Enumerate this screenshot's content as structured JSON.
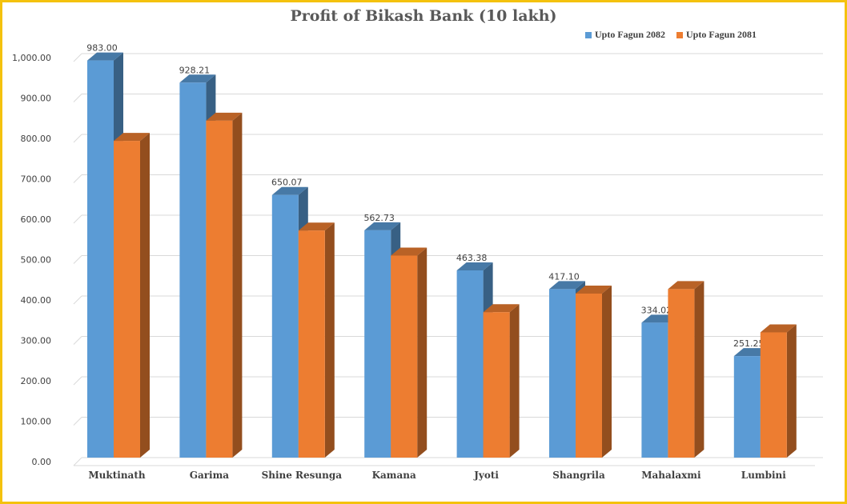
{
  "chart_data": {
    "type": "bar",
    "title": "Profit of Bikash Bank  (10 lakh)",
    "xlabel": "",
    "ylabel": "",
    "ylim": [
      0,
      1000
    ],
    "yticks": [
      "0.00",
      "100.00",
      "200.00",
      "300.00",
      "400.00",
      "500.00",
      "600.00",
      "700.00",
      "800.00",
      "900.00",
      "1,000.00"
    ],
    "grid": true,
    "legend_position": "top-right",
    "categories": [
      "Muktinath",
      "Garima",
      "Shine Resunga",
      "Kamana",
      "Jyoti",
      "Shangrila",
      "Mahalaxmi",
      "Lumbini"
    ],
    "series": [
      {
        "name": "Upto Fagun 2082",
        "color": "#5b9bd5",
        "values": [
          983.0,
          928.21,
          650.07,
          562.73,
          463.38,
          417.1,
          334.02,
          251.25
        ],
        "labels": [
          "983.00",
          "928.21",
          "650.07",
          "562.73",
          "463.38",
          "417.10",
          "334.02",
          "251.25"
        ]
      },
      {
        "name": "Upto Fagun 2081",
        "color": "#ed7d31",
        "values": [
          784,
          834,
          562,
          500,
          360,
          406,
          417,
          310
        ]
      }
    ]
  }
}
